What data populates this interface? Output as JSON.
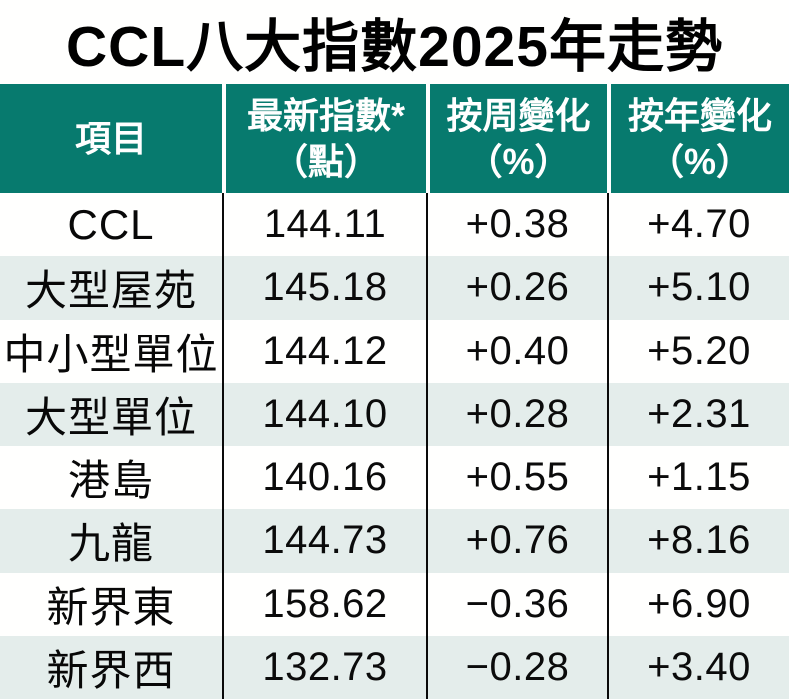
{
  "title": "CCL八大指數2025年走勢",
  "table": {
    "headers": [
      {
        "line1": "項目",
        "line2": ""
      },
      {
        "line1": "最新指數*",
        "line2": "（點）"
      },
      {
        "line1": "按周變化",
        "line2": "（%）"
      },
      {
        "line1": "按年變化",
        "line2": "（%）"
      }
    ],
    "rows": [
      {
        "label": "CCL",
        "index": "144.11",
        "weekly": "+0.38",
        "yearly": "+4.70"
      },
      {
        "label": "大型屋苑",
        "index": "145.18",
        "weekly": "+0.26",
        "yearly": "+5.10"
      },
      {
        "label": "中小型單位",
        "index": "144.12",
        "weekly": "+0.40",
        "yearly": "+5.20"
      },
      {
        "label": "大型單位",
        "index": "144.10",
        "weekly": "+0.28",
        "yearly": "+2.31"
      },
      {
        "label": "港島",
        "index": "140.16",
        "weekly": "+0.55",
        "yearly": "+1.15"
      },
      {
        "label": "九龍",
        "index": "144.73",
        "weekly": "+0.76",
        "yearly": "+8.16"
      },
      {
        "label": "新界東",
        "index": "158.62",
        "weekly": "−0.36",
        "yearly": "+6.90"
      },
      {
        "label": "新界西",
        "index": "132.73",
        "weekly": "−0.28",
        "yearly": "+3.40"
      }
    ]
  },
  "colors": {
    "header_background": "#077a6e",
    "header_text": "#ffffff",
    "alt_row_background": "#e4edeb",
    "row_background": "#fffffe",
    "divider": "#0a0a0a",
    "title_text": "#000000"
  },
  "chart_data": {
    "type": "table",
    "title": "CCL八大指數2025年走勢",
    "columns": [
      "項目",
      "最新指數*（點）",
      "按周變化（%）",
      "按年變化（%）"
    ],
    "rows": [
      {
        "item": "CCL",
        "latest_index": 144.11,
        "weekly_change_pct": 0.38,
        "yearly_change_pct": 4.7
      },
      {
        "item": "大型屋苑",
        "latest_index": 145.18,
        "weekly_change_pct": 0.26,
        "yearly_change_pct": 5.1
      },
      {
        "item": "中小型單位",
        "latest_index": 144.12,
        "weekly_change_pct": 0.4,
        "yearly_change_pct": 5.2
      },
      {
        "item": "大型單位",
        "latest_index": 144.1,
        "weekly_change_pct": 0.28,
        "yearly_change_pct": 2.31
      },
      {
        "item": "港島",
        "latest_index": 140.16,
        "weekly_change_pct": 0.55,
        "yearly_change_pct": 1.15
      },
      {
        "item": "九龍",
        "latest_index": 144.73,
        "weekly_change_pct": 0.76,
        "yearly_change_pct": 8.16
      },
      {
        "item": "新界東",
        "latest_index": 158.62,
        "weekly_change_pct": -0.36,
        "yearly_change_pct": 6.9
      },
      {
        "item": "新界西",
        "latest_index": 132.73,
        "weekly_change_pct": -0.28,
        "yearly_change_pct": 3.4
      }
    ]
  }
}
